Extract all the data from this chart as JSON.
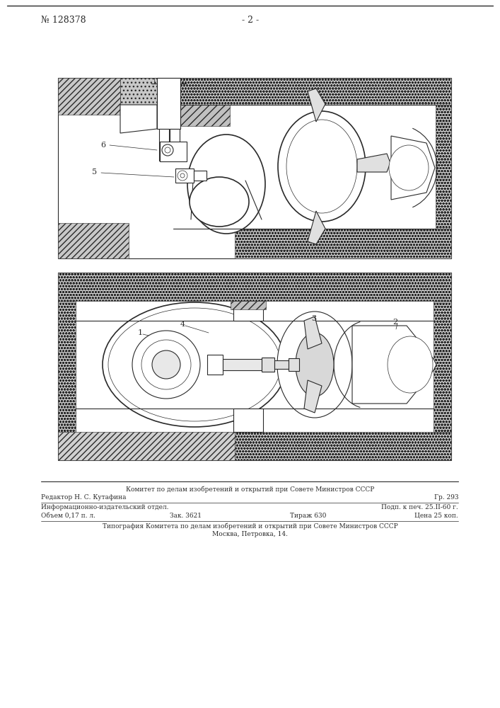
{
  "bg_color": "#ffffff",
  "page_number": "- 2 -",
  "patent_number": "№ 128378",
  "line_color": "#2a2a2a",
  "lw_thin": 0.5,
  "lw_med": 0.9,
  "lw_thick": 1.4,
  "footer_lines": [
    "Комитет по делам изобретений и открытий при Совете Министров СССР",
    "Редактор Н. С. Кутафина",
    "Гр. 293",
    "Информационно-издательский отдел.",
    "Подп. к печ. 25.ІІ-60 г.",
    "Объем 0,17 п. л.",
    "Зак. 3621",
    "Тираж 630",
    "Цена 25 коп.",
    "Типография Комитета по делам изобретений и открытий при Совете Министров СССР",
    "Москва, Петровка, 14."
  ]
}
